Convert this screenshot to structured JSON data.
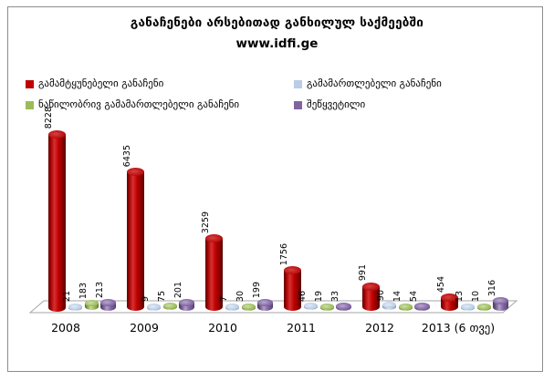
{
  "title": "განაჩენები არსებითად განხილულ საქმეებში",
  "subtitle": "www.idfi.ge",
  "colors": {
    "convicting": "#C00000",
    "acquittal": "#B9CDE5",
    "partial_acquittal": "#9BBB59",
    "terminated": "#8064A2",
    "frame_border": "#8C8C8C",
    "floor_stroke": "#A6A6A6"
  },
  "legend": [
    {
      "label": "გამამტყუნებელი განაჩენი",
      "color": "#C00000"
    },
    {
      "label": "გამამართლებელი განაჩენი",
      "color": "#B9CDE5"
    },
    {
      "label": "ნაწილობრივ გამამართლებელი განაჩენი",
      "color": "#9BBB59"
    },
    {
      "label": "შეწყვეტილი",
      "color": "#8064A2"
    }
  ],
  "chart_data": {
    "type": "bar",
    "style": "3d-cylinder",
    "title": "განაჩენები არსებითად განხილულ საქმეებში",
    "subtitle": "www.idfi.ge",
    "categories": [
      "2008",
      "2009",
      "2010",
      "2011",
      "2012",
      "2013 (6 თვე)"
    ],
    "series": [
      {
        "name": "გამამტყუნებელი განაჩენი",
        "color": "#C00000",
        "values": [
          8228,
          6435,
          3259,
          1756,
          991,
          454
        ]
      },
      {
        "name": "გამამართლებელი განაჩენი",
        "color": "#B9CDE5",
        "values": [
          21,
          9,
          7,
          46,
          90,
          13
        ]
      },
      {
        "name": "ნაწილობრივ გამამართლებელი განაჩენი",
        "color": "#9BBB59",
        "values": [
          183,
          75,
          30,
          19,
          14,
          10
        ]
      },
      {
        "name": "შეწყვეტილი",
        "color": "#8064A2",
        "values": [
          213,
          201,
          199,
          33,
          54,
          316
        ]
      }
    ],
    "ylim": [
      0,
      8228
    ],
    "y_axis_visible": false,
    "gridlines": false,
    "data_labels": true,
    "data_label_rotation": 90,
    "legend_position": "top"
  }
}
